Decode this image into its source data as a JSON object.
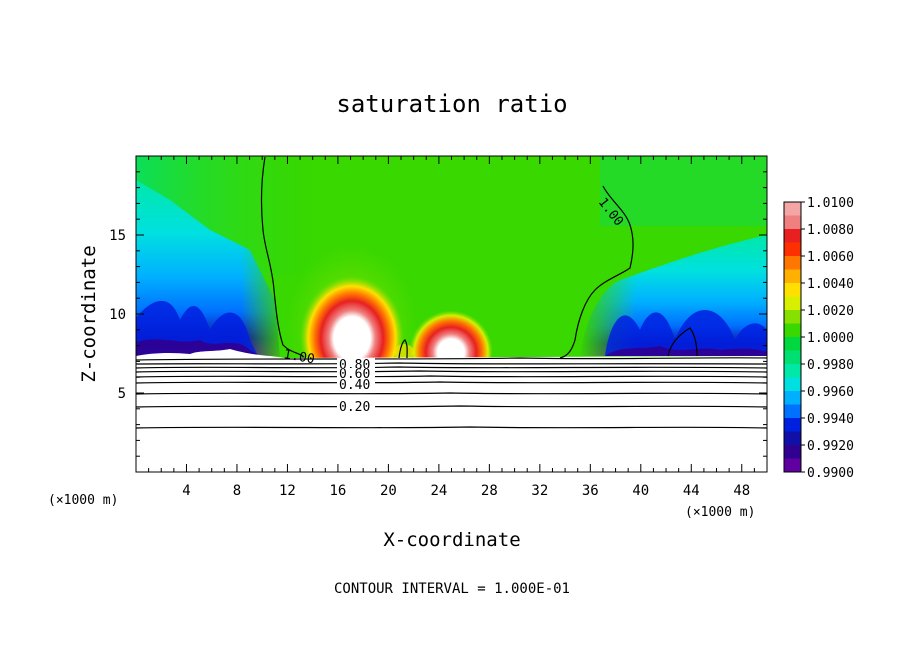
{
  "chart_data": {
    "type": "heatmap",
    "title": "saturation ratio",
    "xlabel": "X-coordinate",
    "ylabel": "Z-coordinate",
    "x_unit": "(×1000 m)",
    "x_unit_right": "(×1000 m)",
    "xlim": [
      0,
      50
    ],
    "ylim": [
      0,
      20
    ],
    "x_ticks": [
      4,
      8,
      12,
      16,
      20,
      24,
      28,
      32,
      36,
      40,
      44,
      48
    ],
    "y_ticks": [
      5,
      10,
      15
    ],
    "colorbar": {
      "levels": [
        "1.0100",
        "1.0080",
        "1.0060",
        "1.0040",
        "1.0020",
        "1.0000",
        "0.9980",
        "0.9960",
        "0.9940",
        "0.9920",
        "0.9900"
      ],
      "colors": [
        "#f4a6a6",
        "#f08080",
        "#e82020",
        "#ff3000",
        "#ff7700",
        "#ffb000",
        "#ffe000",
        "#d8f000",
        "#88e000",
        "#38d800",
        "#00d840",
        "#00e070",
        "#00e8a8",
        "#00e0e0",
        "#00b0ff",
        "#0070ff",
        "#0020e0",
        "#1010a8",
        "#300090",
        "#6000a0"
      ]
    },
    "contour_labels": [
      "1.00",
      "1.00",
      "0.80",
      "0.60",
      "0.40",
      "0.20"
    ],
    "contour_interval_text": "CONTOUR INTERVAL = 1.000E-01"
  }
}
